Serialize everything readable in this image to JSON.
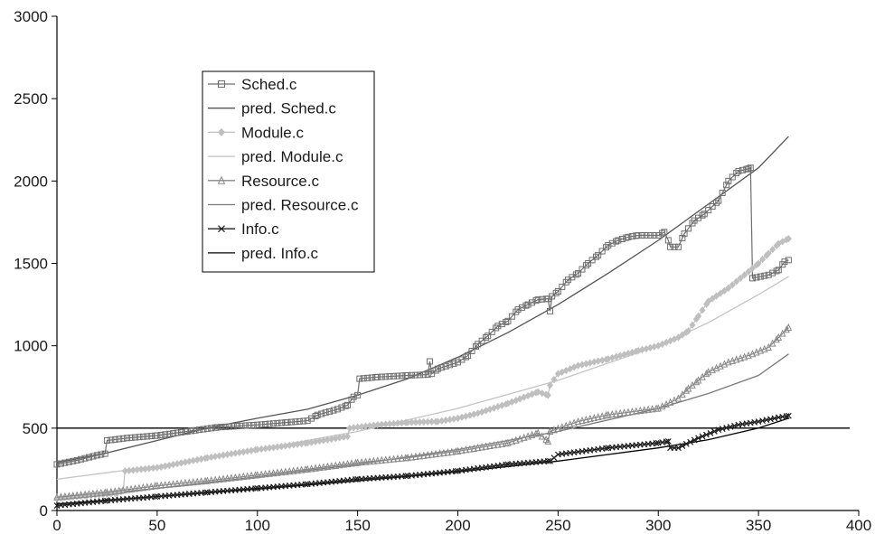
{
  "chart_data": {
    "type": "line",
    "title": "",
    "xlabel": "",
    "ylabel": "",
    "xlim": [
      0,
      400
    ],
    "ylim": [
      0,
      3000
    ],
    "x_ticks": [
      0,
      50,
      100,
      150,
      200,
      250,
      300,
      350,
      400
    ],
    "y_ticks": [
      0,
      500,
      1000,
      1500,
      2000,
      2500,
      3000
    ],
    "grid": false,
    "legend_position": "upper-left",
    "reference_lines": [
      {
        "axis": "y",
        "value": 500,
        "color": "#000000"
      }
    ],
    "series": [
      {
        "name": "Sched.c",
        "kind": "observed",
        "marker": "square",
        "color": "#6e6e6e",
        "points": [
          [
            0,
            280
          ],
          [
            10,
            305
          ],
          [
            20,
            335
          ],
          [
            24,
            345
          ],
          [
            25,
            425
          ],
          [
            35,
            440
          ],
          [
            50,
            455
          ],
          [
            65,
            480
          ],
          [
            80,
            505
          ],
          [
            100,
            520
          ],
          [
            115,
            535
          ],
          [
            125,
            545
          ],
          [
            130,
            580
          ],
          [
            140,
            615
          ],
          [
            145,
            640
          ],
          [
            148,
            690
          ],
          [
            150,
            700
          ],
          [
            151,
            800
          ],
          [
            160,
            810
          ],
          [
            175,
            820
          ],
          [
            185,
            825
          ],
          [
            186,
            905
          ],
          [
            187,
            830
          ],
          [
            190,
            860
          ],
          [
            200,
            900
          ],
          [
            205,
            940
          ],
          [
            210,
            1010
          ],
          [
            215,
            1060
          ],
          [
            220,
            1120
          ],
          [
            225,
            1150
          ],
          [
            230,
            1220
          ],
          [
            235,
            1250
          ],
          [
            240,
            1280
          ],
          [
            245,
            1285
          ],
          [
            246,
            1210
          ],
          [
            247,
            1300
          ],
          [
            250,
            1330
          ],
          [
            255,
            1400
          ],
          [
            260,
            1440
          ],
          [
            265,
            1500
          ],
          [
            270,
            1550
          ],
          [
            275,
            1610
          ],
          [
            280,
            1640
          ],
          [
            285,
            1660
          ],
          [
            290,
            1670
          ],
          [
            300,
            1670
          ],
          [
            303,
            1690
          ],
          [
            305,
            1640
          ],
          [
            306,
            1600
          ],
          [
            310,
            1600
          ],
          [
            313,
            1680
          ],
          [
            318,
            1760
          ],
          [
            323,
            1800
          ],
          [
            330,
            1880
          ],
          [
            335,
            2000
          ],
          [
            340,
            2060
          ],
          [
            345,
            2075
          ],
          [
            346,
            2080
          ],
          [
            347,
            1410
          ],
          [
            355,
            1430
          ],
          [
            360,
            1460
          ],
          [
            363,
            1510
          ],
          [
            365,
            1520
          ]
        ]
      },
      {
        "name": "pred. Sched.c",
        "kind": "prediction",
        "color": "#555555",
        "points": [
          [
            0,
            290
          ],
          [
            25,
            350
          ],
          [
            50,
            425
          ],
          [
            75,
            500
          ],
          [
            100,
            560
          ],
          [
            125,
            615
          ],
          [
            150,
            700
          ],
          [
            175,
            800
          ],
          [
            200,
            930
          ],
          [
            225,
            1080
          ],
          [
            250,
            1250
          ],
          [
            275,
            1440
          ],
          [
            300,
            1640
          ],
          [
            325,
            1860
          ],
          [
            350,
            2080
          ],
          [
            365,
            2270
          ]
        ]
      },
      {
        "name": "Module.c",
        "kind": "observed",
        "marker": "diamond",
        "color": "#bfbfbf",
        "points": [
          [
            0,
            75
          ],
          [
            15,
            90
          ],
          [
            30,
            105
          ],
          [
            33,
            120
          ],
          [
            34,
            240
          ],
          [
            50,
            260
          ],
          [
            75,
            320
          ],
          [
            100,
            370
          ],
          [
            125,
            410
          ],
          [
            145,
            450
          ],
          [
            146,
            500
          ],
          [
            160,
            520
          ],
          [
            175,
            535
          ],
          [
            190,
            540
          ],
          [
            200,
            560
          ],
          [
            210,
            590
          ],
          [
            225,
            650
          ],
          [
            240,
            720
          ],
          [
            245,
            700
          ],
          [
            246,
            760
          ],
          [
            250,
            830
          ],
          [
            260,
            880
          ],
          [
            275,
            920
          ],
          [
            290,
            970
          ],
          [
            300,
            1000
          ],
          [
            310,
            1050
          ],
          [
            315,
            1090
          ],
          [
            320,
            1180
          ],
          [
            325,
            1270
          ],
          [
            335,
            1350
          ],
          [
            345,
            1450
          ],
          [
            350,
            1500
          ],
          [
            355,
            1560
          ],
          [
            360,
            1620
          ],
          [
            365,
            1650
          ]
        ]
      },
      {
        "name": "pred. Module.c",
        "kind": "prediction",
        "color": "#c4c4c4",
        "points": [
          [
            0,
            190
          ],
          [
            50,
            270
          ],
          [
            100,
            370
          ],
          [
            150,
            480
          ],
          [
            200,
            620
          ],
          [
            250,
            790
          ],
          [
            300,
            1000
          ],
          [
            325,
            1140
          ],
          [
            350,
            1310
          ],
          [
            365,
            1420
          ]
        ]
      },
      {
        "name": "Resource.c",
        "kind": "observed",
        "marker": "triangle",
        "color": "#8a8a8a",
        "points": [
          [
            0,
            80
          ],
          [
            25,
            110
          ],
          [
            50,
            150
          ],
          [
            75,
            180
          ],
          [
            100,
            215
          ],
          [
            125,
            250
          ],
          [
            150,
            290
          ],
          [
            175,
            320
          ],
          [
            200,
            360
          ],
          [
            225,
            410
          ],
          [
            240,
            470
          ],
          [
            245,
            420
          ],
          [
            246,
            480
          ],
          [
            260,
            540
          ],
          [
            275,
            580
          ],
          [
            300,
            620
          ],
          [
            310,
            680
          ],
          [
            315,
            740
          ],
          [
            320,
            790
          ],
          [
            325,
            840
          ],
          [
            335,
            900
          ],
          [
            345,
            940
          ],
          [
            355,
            990
          ],
          [
            360,
            1050
          ],
          [
            365,
            1110
          ]
        ]
      },
      {
        "name": "pred. Resource.c",
        "kind": "prediction",
        "color": "#7a7a7a",
        "points": [
          [
            0,
            75
          ],
          [
            50,
            135
          ],
          [
            100,
            205
          ],
          [
            150,
            280
          ],
          [
            200,
            370
          ],
          [
            250,
            480
          ],
          [
            300,
            620
          ],
          [
            325,
            710
          ],
          [
            350,
            820
          ],
          [
            365,
            950
          ]
        ]
      },
      {
        "name": "Info.c",
        "kind": "observed",
        "marker": "x",
        "color": "#1f1f1f",
        "points": [
          [
            0,
            30
          ],
          [
            25,
            60
          ],
          [
            50,
            85
          ],
          [
            75,
            110
          ],
          [
            100,
            135
          ],
          [
            125,
            160
          ],
          [
            150,
            190
          ],
          [
            175,
            210
          ],
          [
            200,
            240
          ],
          [
            225,
            280
          ],
          [
            245,
            300
          ],
          [
            246,
            300
          ],
          [
            250,
            340
          ],
          [
            275,
            380
          ],
          [
            300,
            410
          ],
          [
            305,
            420
          ],
          [
            306,
            380
          ],
          [
            310,
            380
          ],
          [
            320,
            440
          ],
          [
            330,
            490
          ],
          [
            340,
            520
          ],
          [
            350,
            540
          ],
          [
            360,
            565
          ],
          [
            365,
            575
          ]
        ]
      },
      {
        "name": "pred. Info.c",
        "kind": "prediction",
        "color": "#000000",
        "points": [
          [
            0,
            40
          ],
          [
            50,
            85
          ],
          [
            100,
            130
          ],
          [
            150,
            180
          ],
          [
            200,
            235
          ],
          [
            250,
            300
          ],
          [
            300,
            380
          ],
          [
            325,
            430
          ],
          [
            350,
            500
          ],
          [
            365,
            560
          ]
        ]
      }
    ]
  }
}
